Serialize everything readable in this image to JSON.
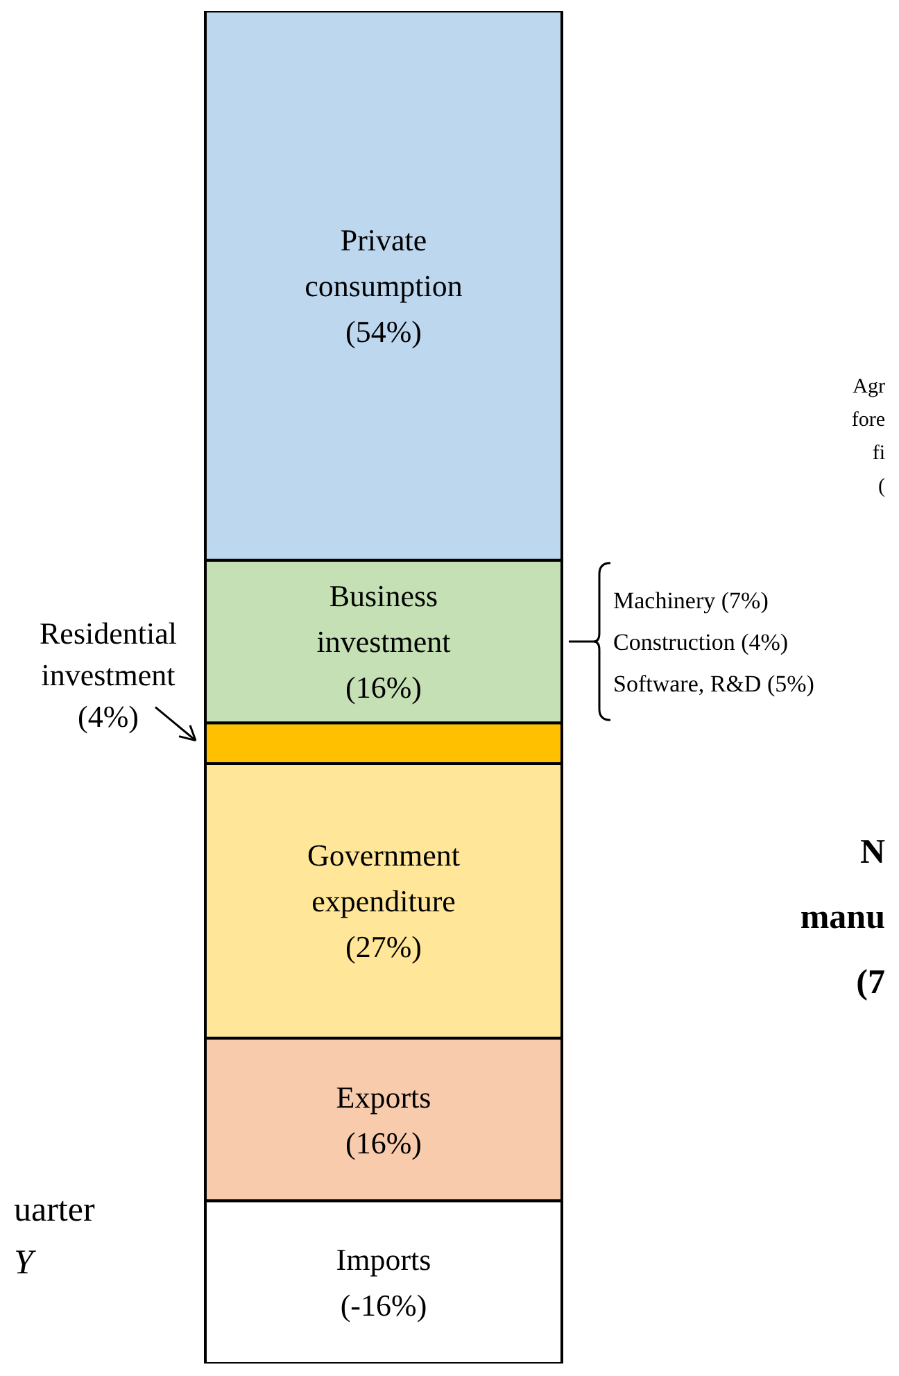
{
  "chart_data": {
    "type": "bar",
    "stacked": true,
    "categories": [
      null
    ],
    "series": [
      {
        "name": "Exports",
        "color": "#f8cbad",
        "values": [
          16
        ],
        "value_labels": [
          "(16%)"
        ]
      },
      {
        "name": "Government expenditure",
        "color": "#ffe699",
        "values": [
          27
        ],
        "value_labels": [
          "(27%)"
        ]
      },
      {
        "name": "Residential investment",
        "color": "#ffc000",
        "values": [
          4
        ],
        "value_labels": [
          "(4%)"
        ]
      },
      {
        "name": "Business investment",
        "color": "#c5e0b4",
        "values": [
          16
        ],
        "value_labels": [
          "(16%)"
        ]
      },
      {
        "name": "Private consumption",
        "color": "#bdd7ee",
        "values": [
          54
        ],
        "value_labels": [
          "(54%)"
        ]
      },
      {
        "name": "Imports",
        "color": "#ffffff",
        "values": [
          -16
        ],
        "value_labels": [
          "(-16%)"
        ]
      }
    ],
    "annotations": [
      "Machinery (7%)\nConstruction (4%)\nSoftware, R&D (5%)",
      "Agr\nfore\nfi\n(",
      "N\nmanu\n(7",
      "uarter\nY"
    ]
  }
}
